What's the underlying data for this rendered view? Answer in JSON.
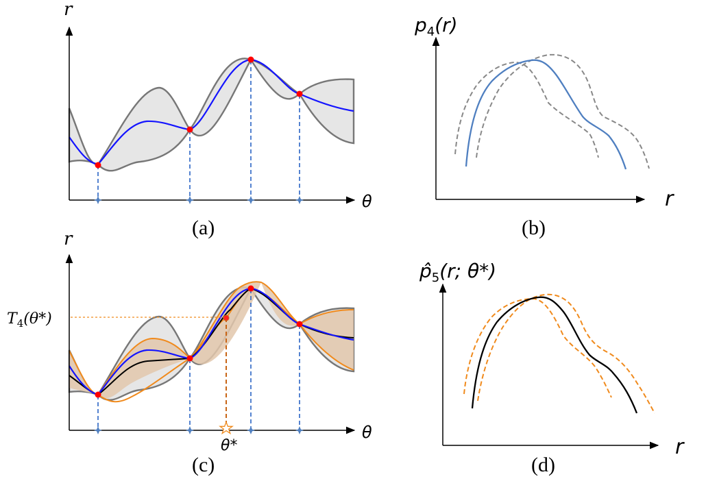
{
  "figure": {
    "panels": {
      "a": {
        "caption": "(a)",
        "y_label": "r",
        "x_label": "θ"
      },
      "b": {
        "caption": "(b)",
        "y_label_base": "p",
        "y_label_sub": "4",
        "y_label_arg": "(r)",
        "x_label": "r"
      },
      "c": {
        "caption": "(c)",
        "y_label": "r",
        "x_label": "θ",
        "level_label_base": "T",
        "level_label_sub": "4",
        "level_label_arg": "(θ*)",
        "candidate_label": "θ*"
      },
      "d": {
        "caption": "(d)",
        "y_label_base": "p̂",
        "y_label_sub": "5",
        "y_label_arg": "(r; θ*)",
        "x_label": "r"
      }
    },
    "colors": {
      "mean": "#1414ff",
      "band_fill": "#e6e6e6",
      "band_edge": "#777777",
      "observation": "#ff0000",
      "orange": "#f08a1c",
      "density_blue": "#4f7fc0",
      "density_gray_dashed": "#888888",
      "density_black": "#000000",
      "density_orange_dashed": "#f08a1c",
      "guide": "#2a64c5"
    },
    "icons": [
      "star-icon",
      "plus-marker-icon",
      "observation-dot-icon"
    ]
  }
}
